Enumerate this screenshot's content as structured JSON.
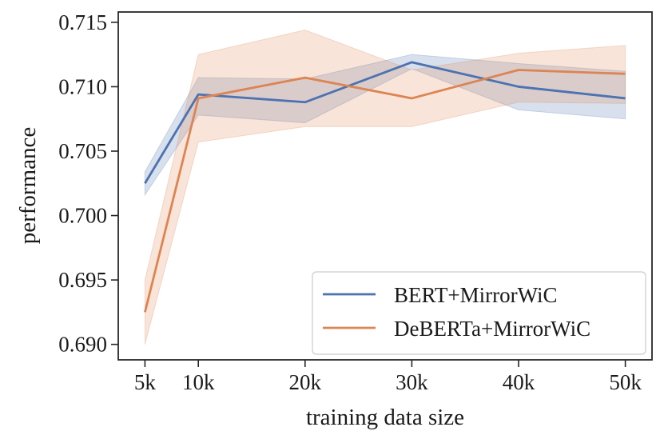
{
  "chart_data": {
    "type": "line",
    "xlabel": "training data size",
    "ylabel": "performance",
    "x": [
      5,
      10,
      20,
      30,
      40,
      50
    ],
    "x_tick_labels": [
      "5k",
      "10k",
      "20k",
      "30k",
      "40k",
      "50k"
    ],
    "xlim": [
      2.5,
      52.5
    ],
    "y_ticks": [
      0.69,
      0.695,
      0.7,
      0.705,
      0.71,
      0.715
    ],
    "y_tick_labels": [
      "0.690",
      "0.695",
      "0.700",
      "0.705",
      "0.710",
      "0.715"
    ],
    "ylim": [
      0.6888,
      0.7158
    ],
    "grid": false,
    "legend_position": "lower-right",
    "series": [
      {
        "name": "BERT+MirrorWiC",
        "color": "#4c72b0",
        "values": [
          0.7025,
          0.7094,
          0.7088,
          0.7119,
          0.71,
          0.7091
        ],
        "lower": [
          0.7016,
          0.7078,
          0.7072,
          0.7114,
          0.7082,
          0.7075
        ],
        "upper": [
          0.7034,
          0.7107,
          0.7106,
          0.7125,
          0.7118,
          0.7112
        ]
      },
      {
        "name": "DeBERTa+MirrorWiC",
        "color": "#dd8452",
        "values": [
          0.6925,
          0.7091,
          0.7107,
          0.7091,
          0.7113,
          0.711
        ],
        "lower": [
          0.69,
          0.7057,
          0.7069,
          0.7069,
          0.7088,
          0.7087
        ],
        "upper": [
          0.695,
          0.7125,
          0.7144,
          0.7113,
          0.7126,
          0.7132
        ]
      }
    ]
  }
}
